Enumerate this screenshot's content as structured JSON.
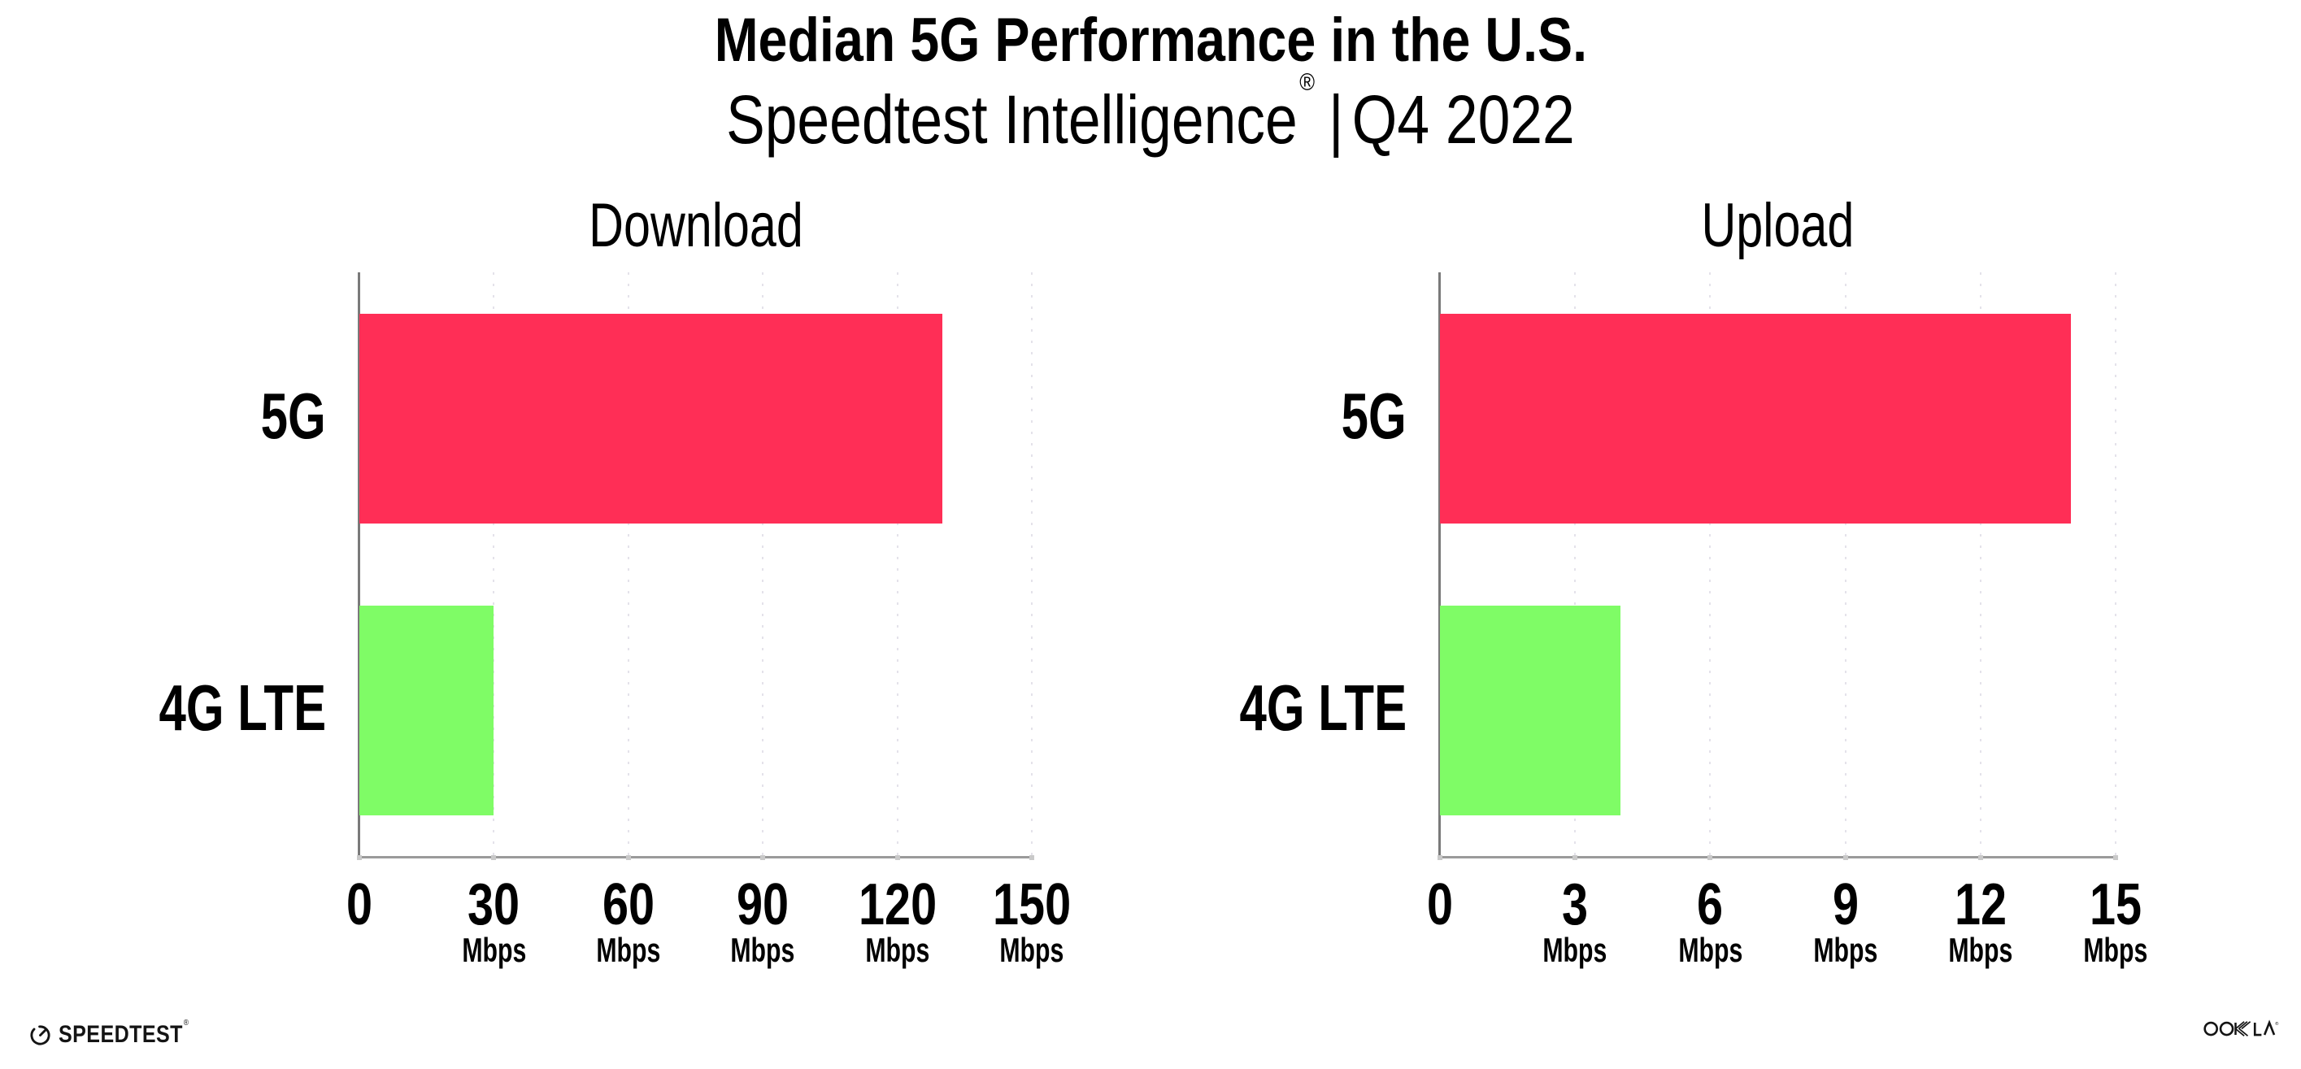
{
  "header": {
    "title": "Median 5G Performance in the U.S.",
    "subtitle_brand": "Speedtest Intelligence",
    "subtitle_registered": "®",
    "subtitle_divider": "|",
    "subtitle_period": "Q4 2022"
  },
  "chart_data": [
    {
      "type": "bar",
      "orientation": "horizontal",
      "title": "Download",
      "categories": [
        "5G",
        "4G LTE"
      ],
      "values": [
        130,
        30
      ],
      "unit": "Mbps",
      "xlim": [
        0,
        150
      ],
      "xticks": [
        0,
        30,
        60,
        90,
        120,
        150
      ],
      "bar_colors": [
        "#FF2E56",
        "#7FFC66"
      ],
      "grid": "dotted-vertical",
      "legend": "none"
    },
    {
      "type": "bar",
      "orientation": "horizontal",
      "title": "Upload",
      "categories": [
        "5G",
        "4G LTE"
      ],
      "values": [
        14,
        4
      ],
      "unit": "Mbps",
      "xlim": [
        0,
        15
      ],
      "xticks": [
        0,
        3,
        6,
        9,
        12,
        15
      ],
      "bar_colors": [
        "#FF2E56",
        "#7FFC66"
      ],
      "grid": "dotted-vertical",
      "legend": "none"
    }
  ],
  "footer": {
    "speedtest_label": "SPEEDTEST",
    "speedtest_mark": "®",
    "speedtest_icon": "speedometer-gauge-icon",
    "ookla_label": "OOKLA",
    "ookla_mark": "®"
  },
  "style": {
    "bar_pink": "#FF2E56",
    "bar_green": "#7FFC66",
    "axis_color": "#9A9A9A",
    "spine_color": "#7A7A7A",
    "grid_dot_color": "#E4E2EA",
    "tick_square_color": "#C9C9C9",
    "text_color": "#000000",
    "background": "#FFFFFF"
  }
}
